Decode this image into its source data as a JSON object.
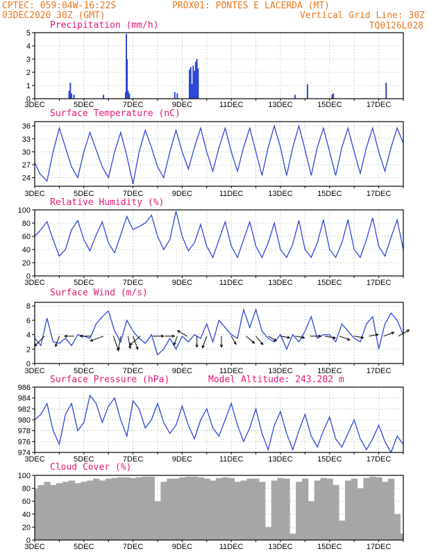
{
  "header": {
    "line1_left": "CPTEC:   059:04W-16:22S",
    "line1_right": "PROX01: PONTES E LACERDA (MT)",
    "line2_left": "03DEC2020 30Z (GMT)",
    "line2_right": "Vertical Grid Line: 30Z",
    "line3_right": "TQ0126L028"
  },
  "colors": {
    "header": "#e8761f",
    "panel_title": "#e8157a",
    "series": "#2b46d6",
    "cloud": "#a6a6a6",
    "grid": "#9a9a9a",
    "wind_arrow": "#000000"
  },
  "x_ticks": [
    "3DEC",
    "5DEC",
    "7DEC",
    "9DEC",
    "11DEC",
    "13DEC",
    "15DEC",
    "17DEC"
  ],
  "chart_data": [
    {
      "type": "bar",
      "title": "Precipitation (mm/h)",
      "x_range": [
        "03DEC2020",
        "18DEC2020"
      ],
      "ylim": [
        0,
        5
      ],
      "yticks": [
        0,
        1,
        2,
        3,
        4,
        5
      ],
      "grid": true,
      "x": [
        4.4,
        4.45,
        4.5,
        4.6,
        5.8,
        6.7,
        6.73,
        6.76,
        6.8,
        6.85,
        8.7,
        8.8,
        9.3,
        9.35,
        9.4,
        9.45,
        9.5,
        9.55,
        9.6,
        9.65,
        13.6,
        14.1,
        15.1,
        15.15,
        17.3
      ],
      "values": [
        0.6,
        1.2,
        0.4,
        0.3,
        0.3,
        0.5,
        4.9,
        3.0,
        0.6,
        0.4,
        0.5,
        0.4,
        2.2,
        2.4,
        1.1,
        2.5,
        2.1,
        2.8,
        3.0,
        2.3,
        0.3,
        1.1,
        0.3,
        0.4,
        1.2
      ]
    },
    {
      "type": "line",
      "title": "Surface Temperature (nC)",
      "ylim": [
        22,
        37
      ],
      "yticks": [
        24,
        27,
        30,
        33,
        36
      ],
      "grid": true,
      "x": [
        3.0,
        3.2,
        3.5,
        3.75,
        4.0,
        4.25,
        4.5,
        4.75,
        5.0,
        5.25,
        5.5,
        5.75,
        6.0,
        6.25,
        6.5,
        6.75,
        7.0,
        7.25,
        7.5,
        7.75,
        8.0,
        8.25,
        8.5,
        8.75,
        9.0,
        9.25,
        9.5,
        9.75,
        10.0,
        10.25,
        10.5,
        10.75,
        11.0,
        11.25,
        11.5,
        11.75,
        12.0,
        12.25,
        12.5,
        12.75,
        13.0,
        13.25,
        13.5,
        13.75,
        14.0,
        14.25,
        14.5,
        14.75,
        15.0,
        15.25,
        15.5,
        15.75,
        16.0,
        16.25,
        16.5,
        16.75,
        17.0,
        17.25,
        17.5,
        17.75,
        18.0
      ],
      "values": [
        27.5,
        25,
        23.2,
        30,
        35.5,
        31,
        26.5,
        24,
        30,
        34.5,
        30.5,
        26.5,
        24,
        30,
        34.5,
        29,
        22.5,
        30,
        35,
        31,
        26.5,
        24,
        30,
        35,
        30,
        26,
        31,
        35.5,
        30,
        25.5,
        31,
        35.5,
        30,
        25.5,
        31,
        35.5,
        30,
        24.5,
        31,
        36,
        31,
        24.5,
        31,
        36,
        30.5,
        24.5,
        31,
        35.5,
        30,
        24.5,
        31,
        35.5,
        30,
        25,
        31,
        35.5,
        30,
        25.5,
        31,
        35.5,
        32
      ]
    },
    {
      "type": "line",
      "title": "Relative Humidity (%)",
      "ylim": [
        0,
        100
      ],
      "yticks": [
        0,
        20,
        40,
        60,
        80,
        100
      ],
      "grid": true,
      "x": [
        3.0,
        3.25,
        3.5,
        3.75,
        4.0,
        4.25,
        4.5,
        4.75,
        5.0,
        5.25,
        5.5,
        5.75,
        6.0,
        6.25,
        6.5,
        6.75,
        7.0,
        7.25,
        7.5,
        7.75,
        8.0,
        8.25,
        8.5,
        8.75,
        9.0,
        9.25,
        9.5,
        9.75,
        10.0,
        10.25,
        10.5,
        10.75,
        11.0,
        11.25,
        11.5,
        11.75,
        12.0,
        12.25,
        12.5,
        12.75,
        13.0,
        13.25,
        13.5,
        13.75,
        14.0,
        14.25,
        14.5,
        14.75,
        15.0,
        15.25,
        15.5,
        15.75,
        16.0,
        16.25,
        16.5,
        16.75,
        17.0,
        17.25,
        17.5,
        17.75,
        18.0
      ],
      "values": [
        60,
        70,
        82,
        55,
        30,
        40,
        70,
        84,
        55,
        38,
        62,
        82,
        50,
        35,
        62,
        90,
        70,
        75,
        80,
        92,
        60,
        40,
        55,
        98,
        60,
        38,
        50,
        78,
        45,
        28,
        55,
        82,
        45,
        28,
        55,
        82,
        45,
        28,
        50,
        80,
        40,
        28,
        48,
        84,
        40,
        28,
        50,
        85,
        40,
        28,
        50,
        85,
        40,
        28,
        55,
        88,
        45,
        30,
        58,
        85,
        40
      ]
    },
    {
      "type": "line",
      "title": "Surface Wind (m/s)",
      "ylim": [
        0,
        8.5
      ],
      "yticks": [
        0,
        2,
        4,
        6,
        8
      ],
      "grid": true,
      "x": [
        3.0,
        3.25,
        3.5,
        3.75,
        4.0,
        4.25,
        4.5,
        4.75,
        5.0,
        5.25,
        5.5,
        5.75,
        6.0,
        6.25,
        6.5,
        6.75,
        7.0,
        7.25,
        7.5,
        7.75,
        8.0,
        8.25,
        8.5,
        8.75,
        9.0,
        9.25,
        9.5,
        9.75,
        10.0,
        10.25,
        10.5,
        10.75,
        11.0,
        11.25,
        11.5,
        11.75,
        12.0,
        12.25,
        12.5,
        12.75,
        13.0,
        13.25,
        13.5,
        13.75,
        14.0,
        14.25,
        14.5,
        14.75,
        15.0,
        15.25,
        15.5,
        15.75,
        16.0,
        16.25,
        16.5,
        16.75,
        17.0,
        17.25,
        17.5,
        17.75,
        18.0
      ],
      "values": [
        3.5,
        2.5,
        6.3,
        3.0,
        2.8,
        3.5,
        2.5,
        4.0,
        3.8,
        3.5,
        5.5,
        6.5,
        7.3,
        4.5,
        3.0,
        6.0,
        4.5,
        3.5,
        2.8,
        4.0,
        1.2,
        2.0,
        3.5,
        2.0,
        3.8,
        3.0,
        4.0,
        3.5,
        5.5,
        3.0,
        6.0,
        5.0,
        4.0,
        3.5,
        7.5,
        5.0,
        7.5,
        4.5,
        3.5,
        3.0,
        4.0,
        2.0,
        4.0,
        3.0,
        4.5,
        6.5,
        3.5,
        4.0,
        4.0,
        3.0,
        5.5,
        4.5,
        3.5,
        3.0,
        5.5,
        6.5,
        2.0,
        5.5,
        7.0,
        6.0,
        4.0
      ],
      "arrows": {
        "x": [
          3.4,
          4.0,
          4.6,
          5.3,
          5.8,
          6.2,
          6.5,
          6.8,
          7.0,
          7.3,
          7.8,
          8.3,
          8.8,
          9.2,
          9.6,
          10.0,
          10.6,
          11.0,
          11.6,
          12.0,
          12.5,
          13.0,
          13.6,
          14.2,
          14.8,
          15.4,
          16.0,
          16.6,
          17.2,
          17.8
        ],
        "speed": [
          6,
          4,
          3,
          4,
          6,
          7,
          6,
          5,
          6,
          6,
          4,
          3,
          3,
          4,
          4,
          5,
          4,
          3,
          4,
          4,
          3,
          3,
          3,
          4,
          4,
          4,
          3,
          3,
          4,
          5
        ],
        "dir_deg": [
          225,
          200,
          270,
          270,
          250,
          160,
          190,
          170,
          160,
          230,
          90,
          90,
          200,
          300,
          180,
          200,
          180,
          150,
          130,
          140,
          120,
          100,
          100,
          90,
          100,
          110,
          100,
          80,
          70,
          60
        ]
      }
    },
    {
      "type": "line",
      "title": "Surface Pressure (hPa)",
      "annotation": "Model Altitude: 243.202 m",
      "ylim": [
        974,
        986
      ],
      "yticks": [
        974,
        976,
        978,
        980,
        982,
        984,
        986
      ],
      "grid": true,
      "x": [
        3.0,
        3.25,
        3.5,
        3.75,
        4.0,
        4.25,
        4.5,
        4.75,
        5.0,
        5.25,
        5.5,
        5.75,
        6.0,
        6.25,
        6.5,
        6.75,
        7.0,
        7.25,
        7.5,
        7.75,
        8.0,
        8.25,
        8.5,
        8.75,
        9.0,
        9.25,
        9.5,
        9.75,
        10.0,
        10.25,
        10.5,
        10.75,
        11.0,
        11.25,
        11.5,
        11.75,
        12.0,
        12.25,
        12.5,
        12.75,
        13.0,
        13.25,
        13.5,
        13.75,
        14.0,
        14.25,
        14.5,
        14.75,
        15.0,
        15.25,
        15.5,
        15.75,
        16.0,
        16.25,
        16.5,
        16.75,
        17.0,
        17.25,
        17.5,
        17.75,
        18.0
      ],
      "values": [
        980,
        981,
        983,
        978,
        975.5,
        981,
        983,
        978,
        979.5,
        984.5,
        983,
        979.5,
        982.5,
        984,
        980,
        977,
        983.5,
        982,
        978.5,
        980,
        983,
        979.5,
        977.5,
        979,
        982.5,
        979,
        976.5,
        980,
        982,
        978.5,
        977,
        980,
        983,
        979,
        976,
        978.5,
        982,
        977.5,
        974.5,
        979,
        981.5,
        977.5,
        974.5,
        978,
        981,
        977,
        975,
        978,
        980.5,
        976.5,
        975,
        977.5,
        980,
        976.5,
        974.5,
        976.5,
        979,
        976,
        974,
        977,
        975.5
      ]
    },
    {
      "type": "bar",
      "title": "Cloud Cover (%)",
      "ylim": [
        0,
        100
      ],
      "yticks": [
        0,
        20,
        40,
        60,
        80,
        100
      ],
      "grid": true,
      "x": [
        3.0,
        3.25,
        3.5,
        3.75,
        4.0,
        4.25,
        4.5,
        4.75,
        5.0,
        5.25,
        5.5,
        5.75,
        6.0,
        6.25,
        6.5,
        6.75,
        7.0,
        7.25,
        7.5,
        7.75,
        8.0,
        8.25,
        8.5,
        8.75,
        9.0,
        9.25,
        9.5,
        9.75,
        10.0,
        10.25,
        10.5,
        10.75,
        11.0,
        11.25,
        11.5,
        11.75,
        12.0,
        12.25,
        12.5,
        12.75,
        13.0,
        13.25,
        13.5,
        13.75,
        14.0,
        14.25,
        14.5,
        14.75,
        15.0,
        15.25,
        15.5,
        15.75,
        16.0,
        16.25,
        16.5,
        16.75,
        17.0,
        17.25,
        17.5,
        17.75,
        18.0
      ],
      "values": [
        80,
        85,
        90,
        85,
        88,
        90,
        92,
        88,
        90,
        92,
        95,
        92,
        95,
        96,
        97,
        97,
        96,
        97,
        98,
        98,
        60,
        90,
        95,
        95,
        97,
        98,
        98,
        97,
        95,
        92,
        96,
        97,
        96,
        90,
        92,
        95,
        95,
        90,
        20,
        92,
        96,
        95,
        10,
        90,
        95,
        60,
        92,
        96,
        95,
        85,
        30,
        92,
        95,
        80,
        96,
        98,
        97,
        90,
        95,
        40,
        10
      ]
    }
  ]
}
